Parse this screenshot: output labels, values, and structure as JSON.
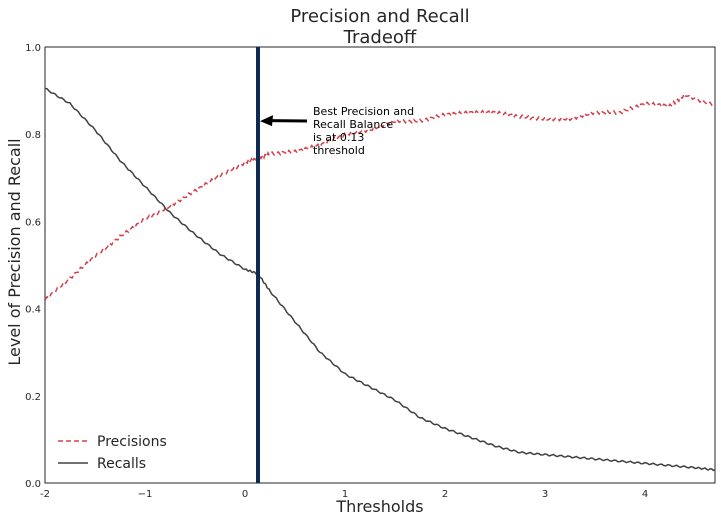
{
  "chart_data": {
    "type": "line",
    "title_line1": "Precision and Recall",
    "title_line2": "Tradeoff",
    "xlabel": "Thresholds",
    "ylabel": "Level of Precision and Recall",
    "xlim": [
      -2,
      4.7
    ],
    "ylim": [
      0,
      1.0
    ],
    "xticks": [
      -2,
      -1,
      0,
      1,
      2,
      3,
      4
    ],
    "xtick_labels": [
      "-2",
      "−1",
      "0",
      "1",
      "2",
      "3",
      "4"
    ],
    "yticks": [
      0.0,
      0.2,
      0.4,
      0.6,
      0.8,
      1.0
    ],
    "ytick_labels": [
      "0.0",
      "0.2",
      "0.4",
      "0.6",
      "0.8",
      "1.0"
    ],
    "grid": false,
    "legend_position": "lower-left",
    "series": [
      {
        "name": "Precisions",
        "style": "dashed",
        "color": "#d0404a",
        "x": [
          -2,
          -1.75,
          -1.5,
          -1.25,
          -1.0,
          -0.75,
          -0.5,
          -0.25,
          0.0,
          0.13,
          0.25,
          0.5,
          0.75,
          1.0,
          1.25,
          1.5,
          1.75,
          2.0,
          2.25,
          2.5,
          2.75,
          3.0,
          3.25,
          3.5,
          3.75,
          4.0,
          4.25,
          4.4,
          4.7
        ],
        "y": [
          0.42,
          0.47,
          0.52,
          0.565,
          0.605,
          0.635,
          0.67,
          0.705,
          0.735,
          0.745,
          0.755,
          0.76,
          0.775,
          0.8,
          0.81,
          0.83,
          0.83,
          0.845,
          0.85,
          0.85,
          0.84,
          0.835,
          0.835,
          0.85,
          0.85,
          0.87,
          0.865,
          0.89,
          0.865
        ]
      },
      {
        "name": "Recalls",
        "style": "solid",
        "color": "#404040",
        "x": [
          -2,
          -1.75,
          -1.5,
          -1.25,
          -1.0,
          -0.75,
          -0.5,
          -0.25,
          0.0,
          0.13,
          0.25,
          0.5,
          0.75,
          1.0,
          1.25,
          1.5,
          1.75,
          2.0,
          2.25,
          2.5,
          2.75,
          3.0,
          3.25,
          3.5,
          3.75,
          4.0,
          4.25,
          4.5,
          4.7
        ],
        "y": [
          0.905,
          0.87,
          0.81,
          0.74,
          0.68,
          0.62,
          0.57,
          0.525,
          0.49,
          0.48,
          0.44,
          0.37,
          0.3,
          0.25,
          0.22,
          0.19,
          0.15,
          0.125,
          0.105,
          0.085,
          0.07,
          0.065,
          0.06,
          0.055,
          0.05,
          0.045,
          0.04,
          0.035,
          0.03
        ]
      }
    ],
    "threshold_line": {
      "x": 0.13,
      "color": "#0d2c54"
    },
    "annotation": {
      "lines": [
        "Best Precision and",
        " Recall Balance",
        " is at 0.13",
        " threshold"
      ],
      "arrow_tip": {
        "x": 0.15,
        "y": 0.83
      },
      "text_anchor": {
        "x": 0.68,
        "y": 0.835
      }
    }
  }
}
